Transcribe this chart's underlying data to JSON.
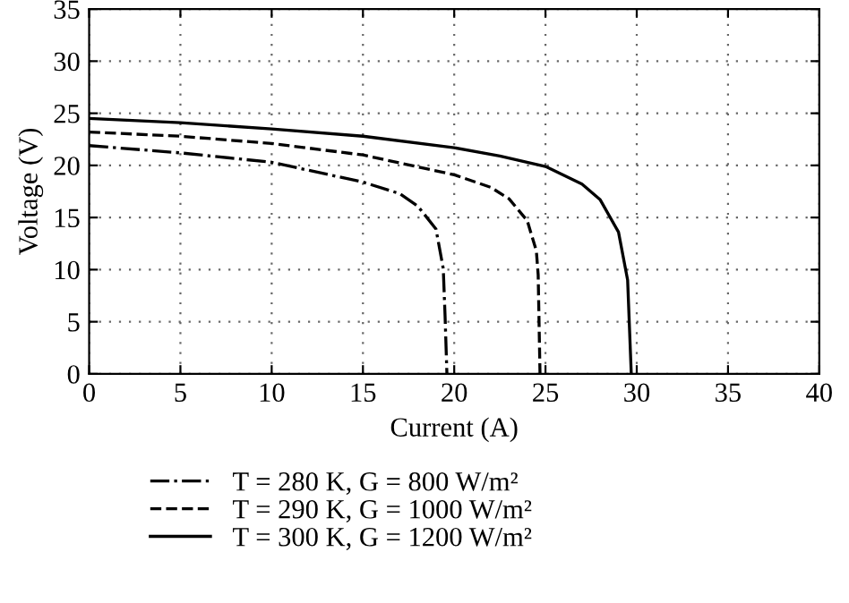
{
  "chart_data": {
    "type": "line",
    "xlabel": "Current (A)",
    "ylabel": "Voltage (V)",
    "xlim": [
      0,
      40
    ],
    "ylim": [
      0,
      35
    ],
    "xticks": [
      0,
      5,
      10,
      15,
      20,
      25,
      30,
      35,
      40
    ],
    "yticks": [
      0,
      5,
      10,
      15,
      20,
      25,
      30,
      35
    ],
    "grid": true,
    "legend": "bottom",
    "marker": "none",
    "series": [
      {
        "name": "T = 280 K, G = 800 W/m²",
        "color": "#000000",
        "line_style": "dashdot",
        "x": [
          0,
          5,
          10,
          15,
          17,
          18,
          19,
          19.4,
          19.5,
          19.6
        ],
        "values": [
          21.9,
          21.2,
          20.3,
          18.4,
          17.3,
          16.1,
          13.9,
          10.1,
          5.5,
          0
        ]
      },
      {
        "name": "T = 290 K, G = 1000 W/m²",
        "color": "#000000",
        "line_style": "dashed",
        "x": [
          0,
          5,
          10,
          15,
          20,
          22,
          23,
          24,
          24.5,
          24.6,
          24.7
        ],
        "values": [
          23.2,
          22.8,
          22.1,
          21.0,
          19.1,
          17.9,
          16.8,
          14.7,
          11.8,
          9.5,
          0
        ]
      },
      {
        "name": "T = 300 K, G = 1200 W/m²",
        "color": "#000000",
        "line_style": "solid",
        "x": [
          0,
          5,
          10,
          15,
          20,
          22.5,
          25,
          27,
          28,
          29,
          29.5,
          29.7
        ],
        "values": [
          24.5,
          24.1,
          23.5,
          22.8,
          21.7,
          20.9,
          19.9,
          18.2,
          16.7,
          13.6,
          9,
          0
        ]
      }
    ]
  }
}
